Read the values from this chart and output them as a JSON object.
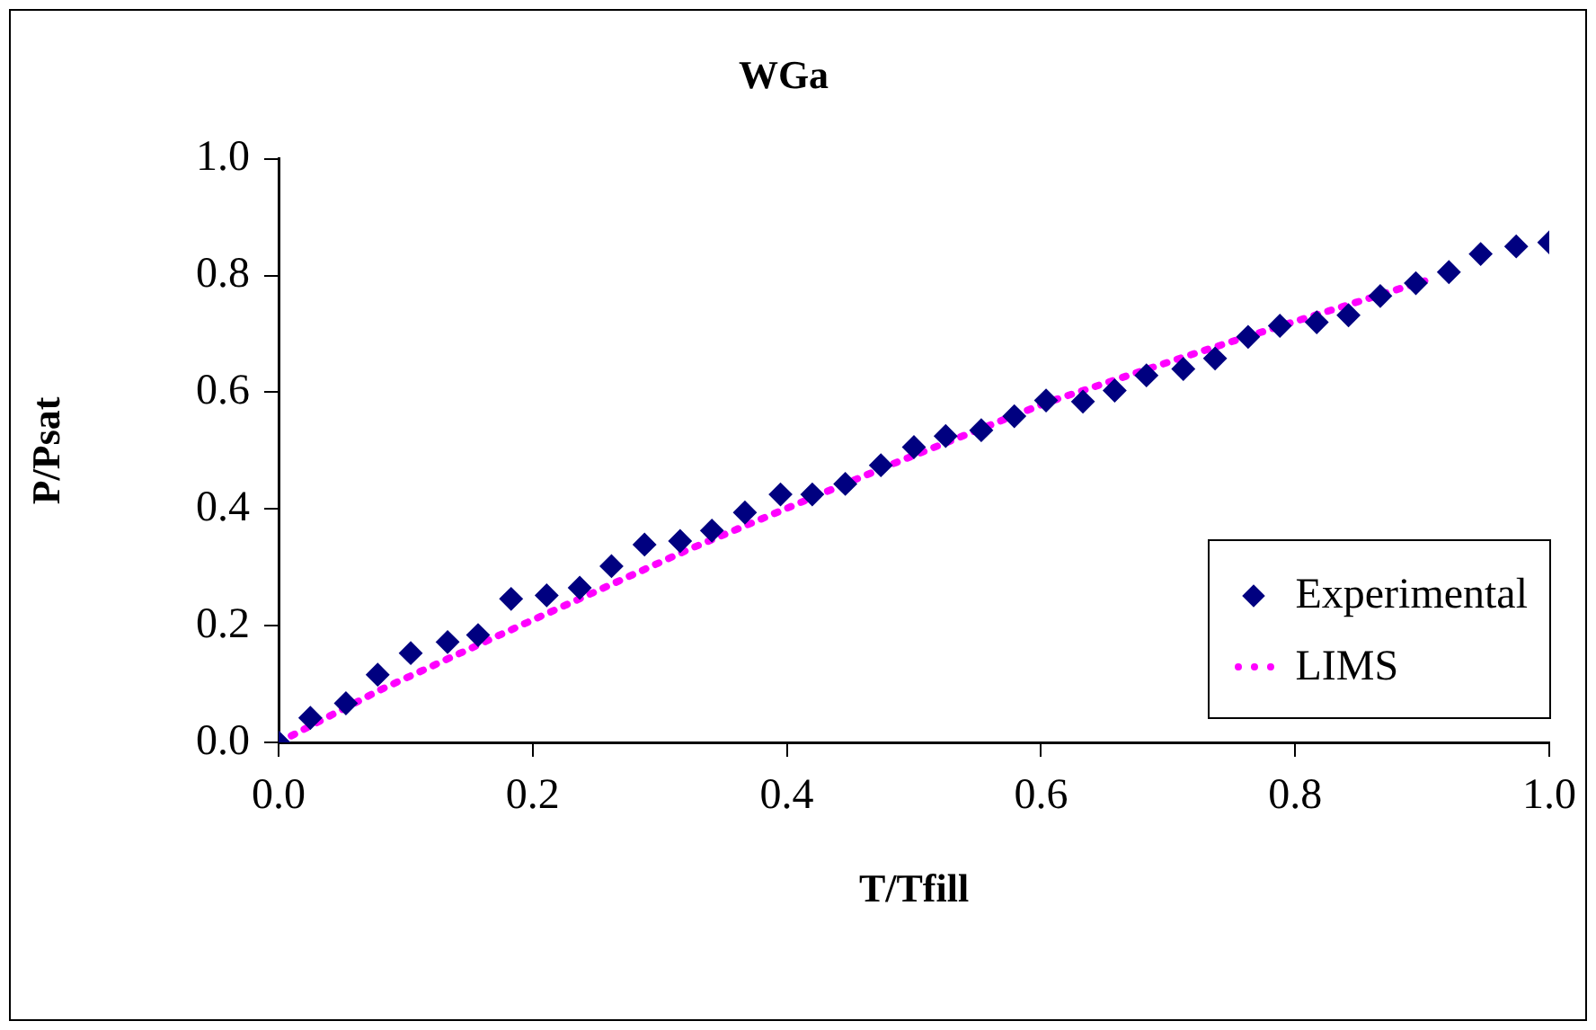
{
  "chart_data": {
    "type": "scatter",
    "title": "WGa",
    "xlabel": "T/Tfill",
    "ylabel": "P/Psat",
    "xlim": [
      0,
      1
    ],
    "ylim": [
      0,
      1
    ],
    "xticks": [
      {
        "value": 0,
        "label": "0.0"
      },
      {
        "value": 0.2,
        "label": "0.2"
      },
      {
        "value": 0.4,
        "label": "0.4"
      },
      {
        "value": 0.6,
        "label": "0.6"
      },
      {
        "value": 0.8,
        "label": "0.8"
      },
      {
        "value": 1,
        "label": "1.0"
      }
    ],
    "yticks": [
      {
        "value": 0,
        "label": "0.0"
      },
      {
        "value": 0.2,
        "label": "0.2"
      },
      {
        "value": 0.4,
        "label": "0.4"
      },
      {
        "value": 0.6,
        "label": "0.6"
      },
      {
        "value": 0.8,
        "label": "0.8"
      },
      {
        "value": 1,
        "label": "1.0"
      }
    ],
    "grid": false,
    "legend": "bottom right",
    "series": [
      {
        "name": "Experimental",
        "marker": "diamond",
        "color": "#000080",
        "x": [
          0,
          0.025,
          0.053,
          0.078,
          0.104,
          0.133,
          0.157,
          0.183,
          0.211,
          0.237,
          0.262,
          0.288,
          0.316,
          0.341,
          0.367,
          0.395,
          0.42,
          0.446,
          0.474,
          0.5,
          0.525,
          0.553,
          0.579,
          0.604,
          0.633,
          0.658,
          0.683,
          0.712,
          0.737,
          0.763,
          0.788,
          0.817,
          0.842,
          0.867,
          0.895,
          0.921,
          0.946,
          0.974,
          1.0
        ],
        "values": [
          0,
          0.042,
          0.067,
          0.116,
          0.153,
          0.172,
          0.184,
          0.246,
          0.252,
          0.265,
          0.302,
          0.339,
          0.345,
          0.363,
          0.394,
          0.425,
          0.425,
          0.443,
          0.475,
          0.506,
          0.525,
          0.535,
          0.559,
          0.586,
          0.584,
          0.603,
          0.629,
          0.64,
          0.658,
          0.695,
          0.714,
          0.72,
          0.732,
          0.765,
          0.787,
          0.806,
          0.837,
          0.85,
          0.857
        ]
      },
      {
        "name": "LIMS",
        "type": "line",
        "marker": "none",
        "line_style": "dotted",
        "color": "#ff00ff",
        "x": [
          0,
          0.08,
          0.184,
          0.322,
          0.483,
          0.604,
          0.716,
          0.789,
          0.902
        ],
        "values": [
          0,
          0.09,
          0.194,
          0.33,
          0.477,
          0.582,
          0.663,
          0.714,
          0.791
        ]
      }
    ]
  }
}
